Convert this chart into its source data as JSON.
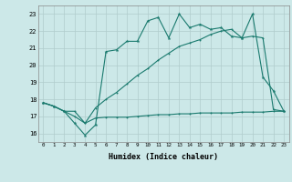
{
  "xlabel": "Humidex (Indice chaleur)",
  "background_color": "#cce8e8",
  "line_color": "#1a7a6e",
  "grid_color": "#b0cccc",
  "xlim": [
    -0.5,
    23.5
  ],
  "ylim": [
    15.5,
    23.5
  ],
  "xticks": [
    0,
    1,
    2,
    3,
    4,
    5,
    6,
    7,
    8,
    9,
    10,
    11,
    12,
    13,
    14,
    15,
    16,
    17,
    18,
    19,
    20,
    21,
    22,
    23
  ],
  "yticks": [
    16,
    17,
    18,
    19,
    20,
    21,
    22,
    23
  ],
  "line1_x": [
    0,
    1,
    2,
    3,
    4,
    5,
    6,
    7,
    8,
    9,
    10,
    11,
    12,
    13,
    14,
    15,
    16,
    17,
    18,
    19,
    20,
    21,
    22,
    23
  ],
  "line1_y": [
    17.8,
    17.6,
    17.3,
    17.3,
    16.6,
    16.9,
    16.95,
    16.95,
    16.95,
    17.0,
    17.05,
    17.1,
    17.1,
    17.15,
    17.15,
    17.2,
    17.2,
    17.2,
    17.2,
    17.25,
    17.25,
    17.25,
    17.3,
    17.3
  ],
  "line2_x": [
    0,
    1,
    2,
    3,
    4,
    5,
    6,
    7,
    8,
    9,
    10,
    11,
    12,
    13,
    14,
    15,
    16,
    17,
    18,
    19,
    20,
    21,
    22,
    23
  ],
  "line2_y": [
    17.8,
    17.6,
    17.3,
    17.0,
    16.6,
    17.5,
    18.0,
    18.4,
    18.9,
    19.4,
    19.8,
    20.3,
    20.7,
    21.1,
    21.3,
    21.5,
    21.8,
    22.0,
    22.1,
    21.6,
    21.7,
    21.6,
    17.4,
    17.3
  ],
  "line3_x": [
    0,
    1,
    2,
    3,
    4,
    5,
    6,
    7,
    8,
    9,
    10,
    11,
    12,
    13,
    14,
    15,
    16,
    17,
    18,
    19,
    20,
    21,
    22,
    23
  ],
  "line3_y": [
    17.8,
    17.6,
    17.3,
    16.6,
    15.9,
    16.5,
    20.8,
    20.9,
    21.4,
    21.4,
    22.6,
    22.8,
    21.6,
    23.0,
    22.2,
    22.4,
    22.1,
    22.2,
    21.7,
    21.6,
    23.0,
    19.3,
    18.5,
    17.3
  ]
}
